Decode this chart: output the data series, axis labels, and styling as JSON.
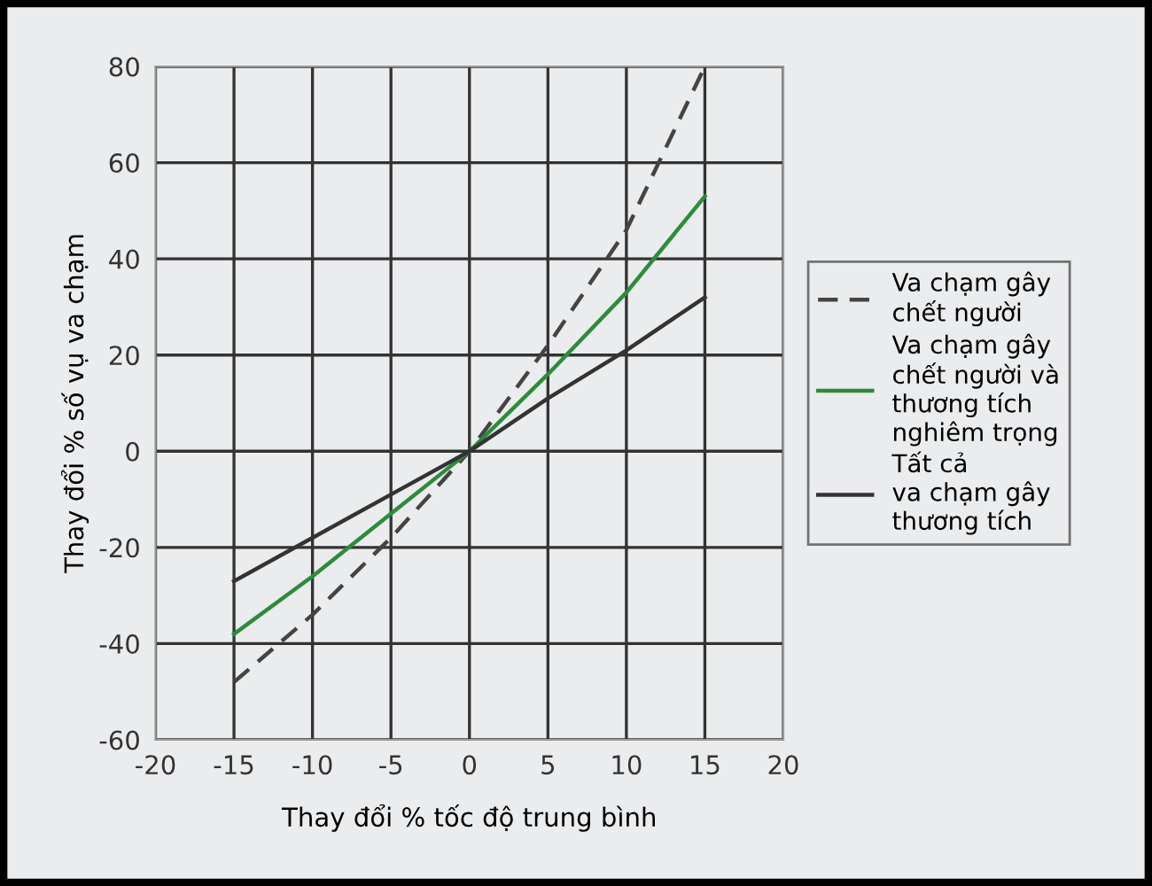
{
  "chart_data": {
    "type": "line",
    "xlabel": "Thay đổi % tốc độ trung bình",
    "ylabel": "Thay đổi % số vụ va chạm",
    "x": [
      -15,
      -10,
      -5,
      0,
      5,
      10,
      15
    ],
    "series": [
      {
        "name": "Va chạm gây\nchết người",
        "color": "#444444",
        "line_style": "dashed",
        "values": [
          -48,
          -34,
          -18,
          0,
          22,
          46,
          80
        ]
      },
      {
        "name": "Va chạm gây\nchết người và\nthương tích\nnghiêm trọng",
        "color": "#2e8b3e",
        "line_style": "solid",
        "values": [
          -38,
          -26,
          -13,
          0,
          16,
          33,
          53
        ]
      },
      {
        "name": "Tất cả\nva chạm gây\nthương tích",
        "color": "#333333",
        "line_style": "solid",
        "values": [
          -27,
          -18,
          -9,
          0,
          11,
          21,
          32
        ]
      }
    ],
    "xlim": [
      -20,
      20
    ],
    "xticks": [
      -20,
      -15,
      -10,
      -5,
      0,
      5,
      10,
      15,
      20
    ],
    "ylim": [
      -60,
      80
    ],
    "yticks": [
      -60,
      -40,
      -20,
      0,
      20,
      40,
      60,
      80
    ],
    "grid": true,
    "legend": "right"
  }
}
